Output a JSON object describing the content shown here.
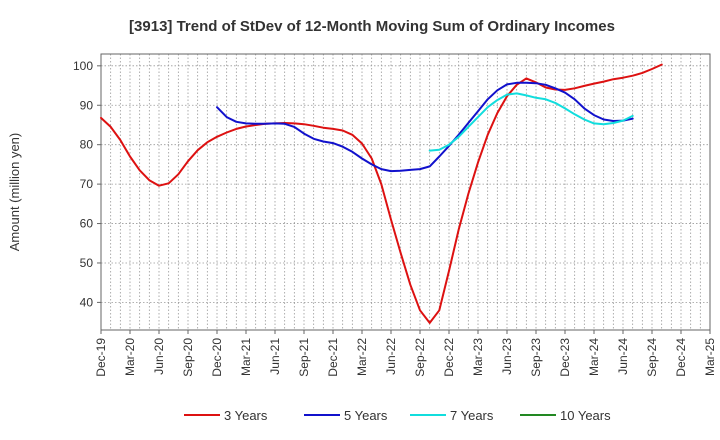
{
  "chart_data": {
    "type": "line",
    "title": "[3913]  Trend of StDev of 12-Month Moving Sum of Ordinary Incomes",
    "xlabel": "",
    "ylabel": "Amount (million yen)",
    "ylim": [
      33,
      103
    ],
    "yticks": [
      40,
      50,
      60,
      70,
      80,
      90,
      100
    ],
    "x_start": "Dec-19",
    "x_end": "Mar-25",
    "x_month_count": 63,
    "xtick_labels": [
      "Dec-19",
      "Mar-20",
      "Jun-20",
      "Sep-20",
      "Dec-20",
      "Mar-21",
      "Jun-21",
      "Sep-21",
      "Dec-21",
      "Mar-22",
      "Jun-22",
      "Sep-22",
      "Dec-22",
      "Mar-23",
      "Jun-23",
      "Sep-23",
      "Dec-23",
      "Mar-24",
      "Jun-24",
      "Sep-24",
      "Dec-24",
      "Mar-25"
    ],
    "grid": true,
    "legend_position": "bottom",
    "series": [
      {
        "name": "3 Years",
        "color": "#dd1111",
        "start_index": 0,
        "values": [
          86.8,
          84.5,
          81.2,
          77.0,
          73.5,
          71.0,
          69.6,
          70.2,
          72.5,
          75.8,
          78.6,
          80.6,
          82.0,
          83.1,
          84.0,
          84.6,
          85.0,
          85.3,
          85.4,
          85.5,
          85.4,
          85.2,
          84.8,
          84.3,
          84.0,
          83.6,
          82.5,
          80.3,
          76.5,
          70.0,
          61.0,
          52.5,
          44.5,
          38.0,
          34.8,
          38.0,
          48.0,
          58.5,
          67.5,
          75.5,
          82.5,
          88.0,
          92.3,
          95.2,
          96.8,
          95.8,
          94.5,
          94.0,
          93.9,
          94.3,
          94.9,
          95.5,
          96.0,
          96.6,
          97.0,
          97.5,
          98.2,
          99.2,
          100.3
        ]
      },
      {
        "name": "5 Years",
        "color": "#1111cc",
        "start_index": 12,
        "values": [
          89.5,
          87.0,
          85.8,
          85.4,
          85.3,
          85.3,
          85.4,
          85.3,
          84.5,
          82.8,
          81.5,
          80.8,
          80.4,
          79.5,
          78.2,
          76.5,
          75.0,
          73.8,
          73.3,
          73.4,
          73.6,
          73.8,
          74.5,
          77.0,
          79.7,
          82.5,
          85.5,
          88.5,
          91.5,
          93.8,
          95.3,
          95.7,
          95.7,
          95.6,
          95.2,
          94.3,
          93.2,
          91.5,
          89.2,
          87.5,
          86.4,
          86.0,
          86.1,
          86.6
        ]
      },
      {
        "name": "7 Years",
        "color": "#11dddd",
        "start_index": 34,
        "values": [
          78.5,
          78.7,
          80.0,
          82.0,
          84.5,
          87.0,
          89.5,
          91.3,
          92.7,
          93.0,
          92.5,
          91.9,
          91.5,
          90.6,
          89.2,
          87.7,
          86.4,
          85.4,
          85.2,
          85.5,
          86.1,
          87.3
        ]
      },
      {
        "name": "10 Years",
        "color": "#228822",
        "start_index": 0,
        "values": []
      }
    ]
  }
}
